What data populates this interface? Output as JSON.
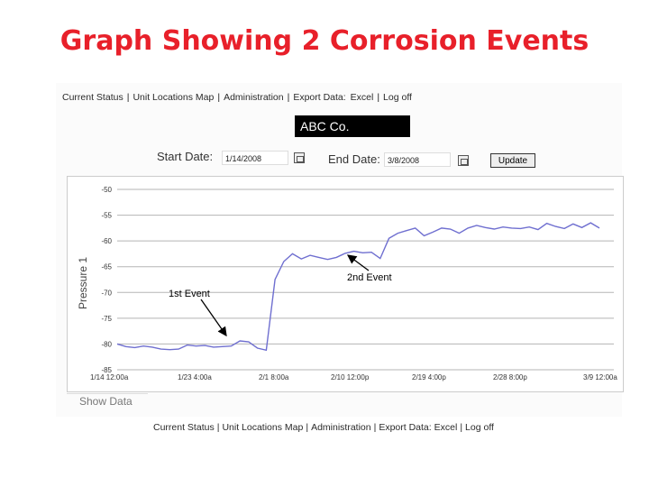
{
  "slide": {
    "title": "Graph Showing 2 Corrosion Events"
  },
  "nav": [
    "Current Status",
    "Unit Locations Map",
    "Administration"
  ],
  "export": {
    "label": "Export Data:",
    "excel": "Excel",
    "logoff": "Log off"
  },
  "company": "ABC Co.",
  "filters": {
    "start_label": "Start Date:",
    "start_value": "1/14/2008",
    "end_label": "End Date:",
    "end_value": "3/8/2008",
    "update": "Update"
  },
  "show_data": "Show Data",
  "colors": {
    "title": "#e8202a",
    "line": "#6f6fd0"
  },
  "chart_data": {
    "type": "line",
    "ylabel": "Pressure 1",
    "ylim": [
      -85,
      -50
    ],
    "yticks": [
      "-50",
      "-55",
      "-60",
      "-65",
      "-70",
      "-75",
      "-80",
      "-85"
    ],
    "xticks": [
      "1/14 12:00a",
      "1/23 4:00a",
      "2/1 8:00a",
      "2/10 12:00p",
      "2/19 4:00p",
      "2/28 8:00p",
      "3/9 12:00a"
    ],
    "grid": true,
    "series": [
      {
        "x": [
          "1/14",
          "1/15",
          "1/16",
          "1/17",
          "1/18",
          "1/19",
          "1/20",
          "1/21",
          "1/22",
          "1/23",
          "1/24",
          "1/25",
          "1/26",
          "1/27",
          "1/28",
          "1/29",
          "1/30",
          "1/31",
          "2/1",
          "2/2",
          "2/3",
          "2/4",
          "2/5",
          "2/6",
          "2/7",
          "2/8",
          "2/9",
          "2/10",
          "2/11",
          "2/12",
          "2/13",
          "2/14",
          "2/15",
          "2/16",
          "2/17",
          "2/18",
          "2/19",
          "2/20",
          "2/21",
          "2/22",
          "2/23",
          "2/24",
          "2/25",
          "2/26",
          "2/27",
          "2/28",
          "2/29",
          "3/1",
          "3/2",
          "3/3",
          "3/4",
          "3/5",
          "3/6",
          "3/7",
          "3/8",
          "3/9"
        ],
        "values": [
          -80,
          -80.5,
          -80.7,
          -80.4,
          -80.6,
          -81,
          -81.1,
          -81,
          -80.2,
          -80.4,
          -80.3,
          -80.6,
          -80.5,
          -80.4,
          -79.4,
          -79.6,
          -80.8,
          -81.2,
          -67.5,
          -64,
          -62.5,
          -63.5,
          -62.8,
          -63.2,
          -63.6,
          -63.2,
          -62.4,
          -62,
          -62.3,
          -62.2,
          -63.4,
          -59.5,
          -58.5,
          -58,
          -57.5,
          -59,
          -58.3,
          -57.5,
          -57.7,
          -58.5,
          -57.5,
          -57,
          -57.4,
          -57.7,
          -57.3,
          -57.5,
          -57.6,
          -57.3,
          -57.8,
          -56.6,
          -57.2,
          -57.6,
          -56.7,
          -57.4,
          -56.5,
          -57.5
        ]
      }
    ],
    "annotations": [
      "1st Event",
      "2nd Event"
    ]
  }
}
